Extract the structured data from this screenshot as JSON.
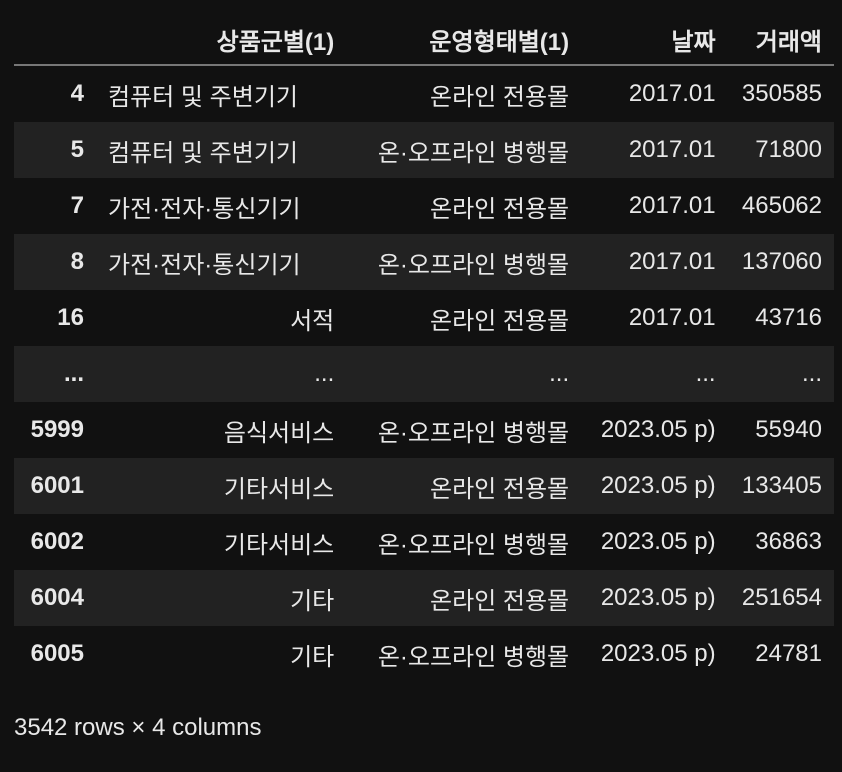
{
  "table": {
    "columns": [
      "",
      "상품군별(1)",
      "운영형태별(1)",
      "날짜",
      "거래액"
    ],
    "rows": [
      [
        "4",
        "컴퓨터 및 주변기기",
        "온라인 전용몰",
        "2017.01",
        "350585"
      ],
      [
        "5",
        "컴퓨터 및 주변기기",
        "온·오프라인 병행몰",
        "2017.01",
        "71800"
      ],
      [
        "7",
        "가전·전자·통신기기",
        "온라인 전용몰",
        "2017.01",
        "465062"
      ],
      [
        "8",
        "가전·전자·통신기기",
        "온·오프라인 병행몰",
        "2017.01",
        "137060"
      ],
      [
        "16",
        "서적",
        "온라인 전용몰",
        "2017.01",
        "43716"
      ],
      [
        "...",
        "...",
        "...",
        "...",
        "..."
      ],
      [
        "5999",
        "음식서비스",
        "온·오프라인 병행몰",
        "2023.05 p)",
        "55940"
      ],
      [
        "6001",
        "기타서비스",
        "온라인 전용몰",
        "2023.05 p)",
        "133405"
      ],
      [
        "6002",
        "기타서비스",
        "온·오프라인 병행몰",
        "2023.05 p)",
        "36863"
      ],
      [
        "6004",
        "기타",
        "온라인 전용몰",
        "2023.05 p)",
        "251654"
      ],
      [
        "6005",
        "기타",
        "온·오프라인 병행몰",
        "2023.05 p)",
        "24781"
      ]
    ]
  },
  "footer": "3542 rows × 4 columns",
  "colors": {
    "background": "#111111",
    "alt_row": "#222222",
    "text": "#e8e8e8"
  }
}
